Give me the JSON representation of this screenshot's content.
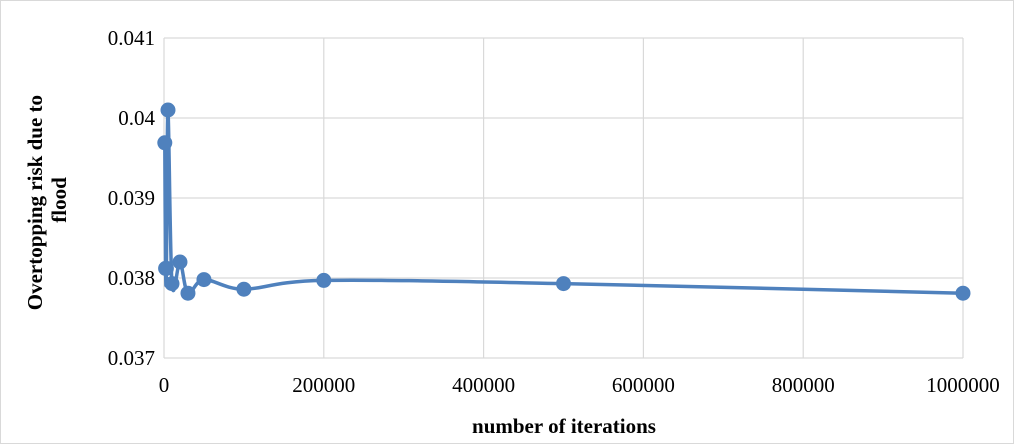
{
  "chart_data": {
    "type": "scatter",
    "title": "",
    "xlabel": "number of iterations",
    "ylabel_lines": [
      "Overtopping risk due to",
      "flood"
    ],
    "xlim": [
      0,
      1000000
    ],
    "ylim": [
      0.037,
      0.041
    ],
    "x_ticks": [
      "0",
      "200000",
      "400000",
      "600000",
      "800000",
      "1000000"
    ],
    "y_ticks": [
      "0.037",
      "0.038",
      "0.039",
      "0.04",
      "0.041"
    ],
    "grid": true,
    "legend": "none",
    "series": [
      {
        "color": "#4f81bd",
        "x": [
          1000,
          2000,
          3000,
          5000,
          10000,
          20000,
          30000,
          50000,
          100000,
          200000,
          500000,
          1000000
        ],
        "y": [
          0.03969,
          0.03812,
          0.03812,
          0.0401,
          0.03793,
          0.0382,
          0.03781,
          0.03798,
          0.03786,
          0.03797,
          0.03793,
          0.03781
        ]
      }
    ]
  }
}
